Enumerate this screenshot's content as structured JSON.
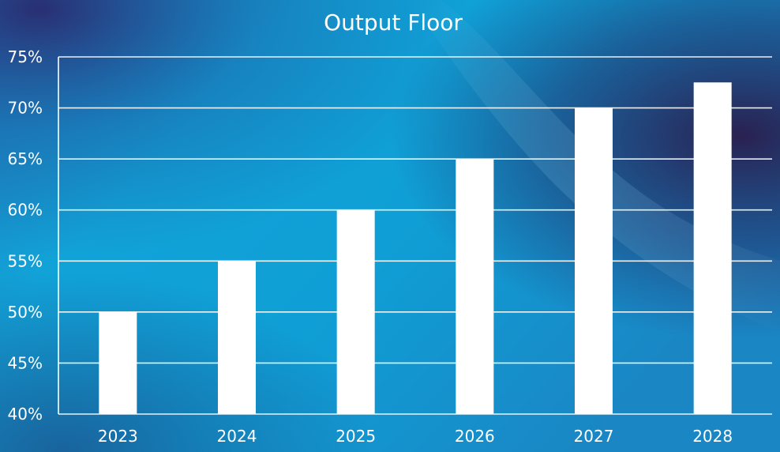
{
  "colors": {
    "background": "#0fa7da",
    "bars": "#ffffff",
    "grid": "#ffffff",
    "text": "#ffffff"
  },
  "chart_data": {
    "type": "bar",
    "title": "Output Floor",
    "xlabel": "",
    "ylabel": "",
    "categories": [
      "2023",
      "2024",
      "2025",
      "2026",
      "2027",
      "2028"
    ],
    "values": [
      50,
      55,
      60,
      65,
      70,
      72.5
    ],
    "ylim": [
      40,
      75
    ],
    "yticks": [
      40,
      45,
      50,
      55,
      60,
      65,
      70,
      75
    ],
    "ytick_labels": [
      "40%",
      "45%",
      "50%",
      "55%",
      "60%",
      "65%",
      "70%",
      "75%"
    ],
    "grid": true,
    "legend": "none"
  }
}
